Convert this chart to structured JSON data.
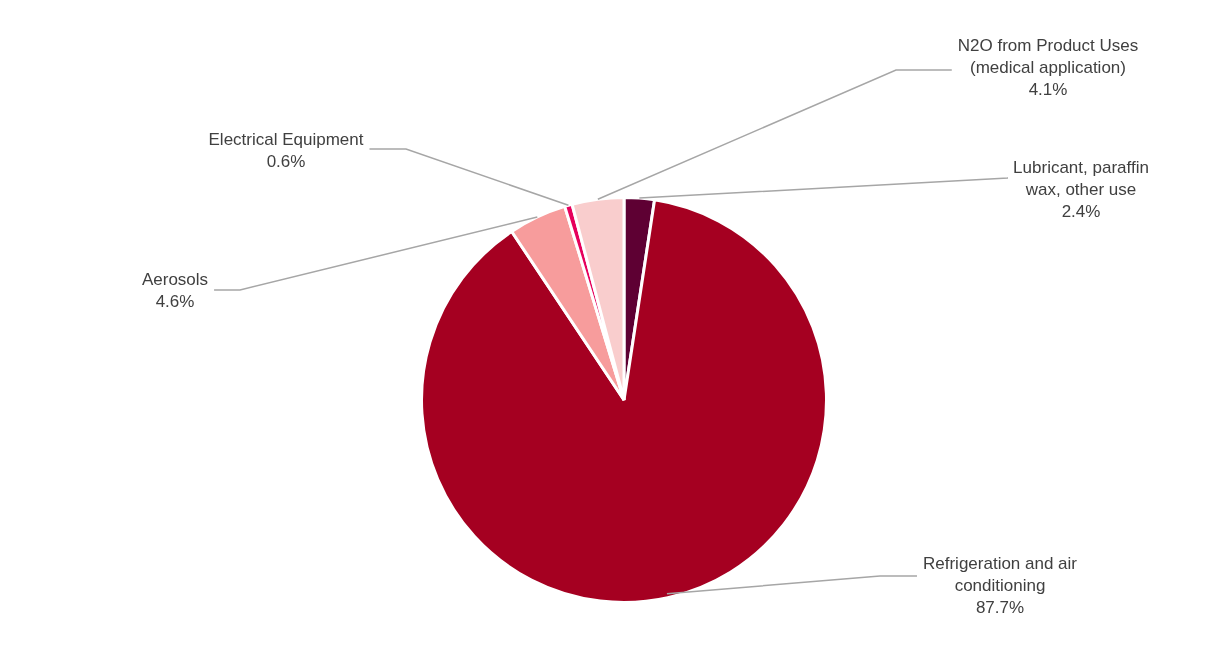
{
  "chart_data": {
    "type": "pie",
    "categories": [
      "Lubricant, paraffin wax, other use",
      "Refrigeration and air conditioning",
      "Aerosols",
      "Electrical Equipment",
      "N2O from Product Uses (medical application)"
    ],
    "values": [
      2.4,
      87.7,
      4.6,
      0.6,
      4.1
    ],
    "colors": [
      "#5e0033",
      "#a50021",
      "#f79c9c",
      "#e6005c",
      "#f9cdcd"
    ],
    "value_labels": [
      "2.4%",
      "87.7%",
      "4.6%",
      "0.6%",
      "4.1%"
    ],
    "legend": false
  }
}
